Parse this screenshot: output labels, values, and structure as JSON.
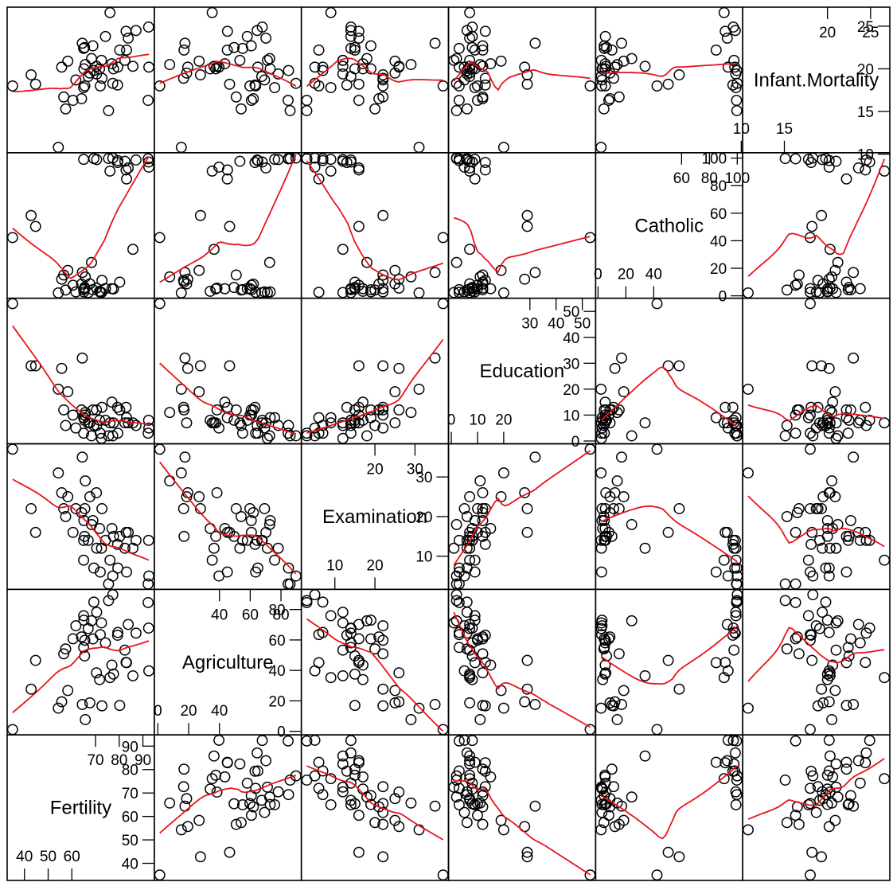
{
  "chart_data": {
    "type": "scatter",
    "title": "",
    "variables": [
      "Fertility",
      "Agriculture",
      "Examination",
      "Education",
      "Catholic",
      "Infant.Mortality"
    ],
    "smoother_color": "#e8141c",
    "point_color": "#000000",
    "grid": false,
    "ranges": {
      "Fertility": [
        35,
        92.5
      ],
      "Agriculture": [
        1.2,
        89.7
      ],
      "Examination": [
        3,
        37
      ],
      "Education": [
        1,
        53
      ],
      "Catholic": [
        2.15,
        100
      ],
      "Infant.Mortality": [
        10.8,
        26.6
      ]
    },
    "diagonal_ticks": {
      "Fertility": {
        "right": [
          "90",
          "80",
          "70",
          "60",
          "50",
          "40"
        ],
        "top": [
          "70",
          "80",
          "90"
        ],
        "left": [
          "40",
          "50",
          "60"
        ]
      },
      "Agriculture": {
        "right": [
          "80",
          "60",
          "40",
          "20",
          "0"
        ],
        "top": [
          "40",
          "60",
          "80"
        ],
        "left": [
          "0",
          "20",
          "40"
        ]
      },
      "Examination": {
        "right": [
          "30",
          "20",
          "10"
        ],
        "top": [
          "20",
          "30"
        ],
        "left": [
          "10",
          "20"
        ]
      },
      "Education": {
        "right": [
          "50",
          "40",
          "30",
          "20",
          "10",
          "0"
        ],
        "top": [
          "30",
          "40",
          "50"
        ],
        "left": [
          "0",
          "10",
          "20"
        ]
      },
      "Catholic": {
        "right": [
          "100",
          "80",
          "60",
          "40",
          "20",
          "0"
        ],
        "top": [
          "60",
          "80",
          "100"
        ],
        "left": [
          "0",
          "20",
          "40"
        ]
      },
      "Infant.Mortality": {
        "right": [
          "25",
          "20",
          "15",
          "10"
        ],
        "top": [
          "20",
          "25"
        ],
        "left": [
          "10",
          "15"
        ]
      }
    },
    "series": [
      {
        "name": "Fertility",
        "values": [
          80.2,
          83.1,
          92.5,
          85.8,
          76.9,
          76.1,
          83.8,
          92.4,
          82.4,
          82.9,
          87.1,
          64.1,
          66.9,
          68.9,
          61.7,
          68.3,
          71.7,
          55.7,
          54.3,
          65.1,
          65.5,
          65.0,
          56.6,
          57.4,
          72.5,
          74.2,
          72.0,
          60.5,
          58.3,
          65.4,
          75.5,
          69.3,
          77.3,
          70.5,
          79.4,
          65.0,
          92.2,
          79.3,
          70.4,
          65.7,
          72.7,
          64.4,
          77.6,
          67.6,
          35.0,
          44.7,
          42.8
        ]
      },
      {
        "name": "Agriculture",
        "values": [
          17.0,
          45.1,
          39.7,
          36.5,
          43.5,
          35.3,
          70.2,
          67.8,
          53.3,
          45.2,
          64.5,
          62.0,
          67.5,
          60.7,
          69.3,
          72.6,
          34.0,
          19.4,
          15.2,
          73.0,
          59.8,
          55.1,
          50.9,
          54.1,
          71.2,
          58.1,
          63.5,
          60.8,
          26.8,
          49.5,
          85.9,
          84.9,
          89.7,
          78.2,
          64.9,
          75.9,
          84.6,
          63.1,
          38.4,
          7.7,
          16.7,
          17.6,
          37.6,
          18.7,
          1.2,
          46.6,
          27.7
        ]
      },
      {
        "name": "Examination",
        "values": [
          15,
          6,
          5,
          12,
          17,
          9,
          16,
          14,
          12,
          16,
          14,
          21,
          14,
          19,
          22,
          18,
          17,
          26,
          31,
          19,
          22,
          14,
          22,
          20,
          12,
          14,
          6,
          16,
          25,
          15,
          3,
          7,
          5,
          12,
          7,
          9,
          3,
          13,
          26,
          29,
          22,
          35,
          15,
          25,
          37,
          16,
          22
        ]
      },
      {
        "name": "Education",
        "values": [
          12,
          9,
          5,
          7,
          15,
          7,
          7,
          8,
          7,
          13,
          6,
          12,
          7,
          12,
          5,
          2,
          8,
          28,
          20,
          9,
          10,
          3,
          12,
          6,
          1,
          8,
          3,
          10,
          19,
          8,
          2,
          6,
          2,
          6,
          3,
          9,
          3,
          13,
          12,
          11,
          13,
          32,
          7,
          7,
          53,
          29,
          29
        ]
      },
      {
        "name": "Catholic",
        "values": [
          9.96,
          84.84,
          93.4,
          33.77,
          5.16,
          90.57,
          92.85,
          97.16,
          97.67,
          91.38,
          98.61,
          8.52,
          2.27,
          4.43,
          2.82,
          24.2,
          3.3,
          12.11,
          2.15,
          2.84,
          5.23,
          4.52,
          15.14,
          4.2,
          2.4,
          5.23,
          2.56,
          7.72,
          18.46,
          6.1,
          99.71,
          99.68,
          100.0,
          98.96,
          98.22,
          99.06,
          99.46,
          96.83,
          5.62,
          13.79,
          11.22,
          16.92,
          4.97,
          8.65,
          42.34,
          50.43,
          58.33
        ]
      },
      {
        "name": "Infant.Mortality",
        "values": [
          22.2,
          22.2,
          20.2,
          20.3,
          20.6,
          26.6,
          23.6,
          24.9,
          21.0,
          24.4,
          24.5,
          16.5,
          19.1,
          22.7,
          18.7,
          21.2,
          20.0,
          20.2,
          10.8,
          20.0,
          18.0,
          22.4,
          16.7,
          15.3,
          21.0,
          23.8,
          18.0,
          16.3,
          20.9,
          22.5,
          15.1,
          19.8,
          18.3,
          19.4,
          20.2,
          17.8,
          16.3,
          18.1,
          20.3,
          20.5,
          18.9,
          23.0,
          20.0,
          19.5,
          18.0,
          18.2,
          19.3
        ]
      }
    ]
  }
}
